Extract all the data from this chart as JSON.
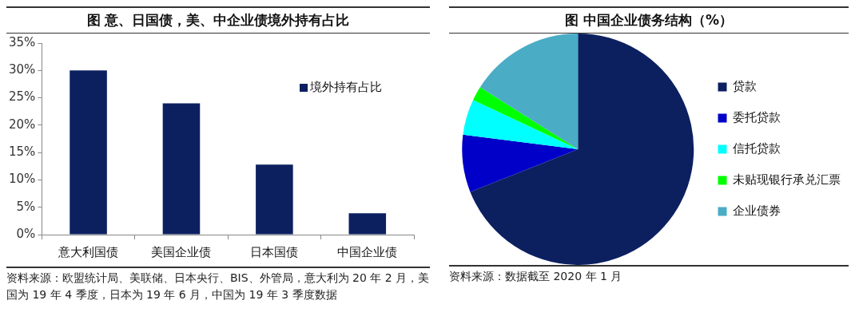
{
  "chart_data": [
    {
      "type": "bar",
      "title": "图  意、日国债，美、中企业债境外持有占比",
      "categories": [
        "意大利国债",
        "美国企业债",
        "日本国债",
        "中国企业债"
      ],
      "series": [
        {
          "name": "境外持有占比",
          "color": "#0c2060",
          "values": [
            30,
            24,
            12.8,
            3.9
          ]
        }
      ],
      "ylim": [
        0,
        35
      ],
      "yticks": [
        {
          "value": 0,
          "label": "0%"
        },
        {
          "value": 5,
          "label": "5%"
        },
        {
          "value": 10,
          "label": "10%"
        },
        {
          "value": 15,
          "label": "15%"
        },
        {
          "value": 20,
          "label": "20%"
        },
        {
          "value": 25,
          "label": "25%"
        },
        {
          "value": 30,
          "label": "30%"
        },
        {
          "value": 35,
          "label": "35%"
        }
      ],
      "grid": false,
      "legend": "top right",
      "annotations": [
        "资料来源：欧盟统计局、美联储、日本央行、BIS、外管局，意大利为 20 年 2 月，美国为 19 年 4 季度，日本为 19 年 6 月，中国为 19 年 3 季度数据"
      ]
    },
    {
      "type": "pie",
      "title": "图    中国企业债务结构（%）",
      "categories": [
        "贷款",
        "委托贷款",
        "信托贷款",
        "未贴现银行承兑汇票",
        "企业债券"
      ],
      "values": [
        69,
        8,
        5,
        2,
        16
      ],
      "colors": [
        "#0c2060",
        "#0000c8",
        "#00ffff",
        "#00ff00",
        "#4bacc6"
      ],
      "legend": "right",
      "annotations": [
        "资料来源：数据截至 2020 年 1 月"
      ]
    }
  ]
}
